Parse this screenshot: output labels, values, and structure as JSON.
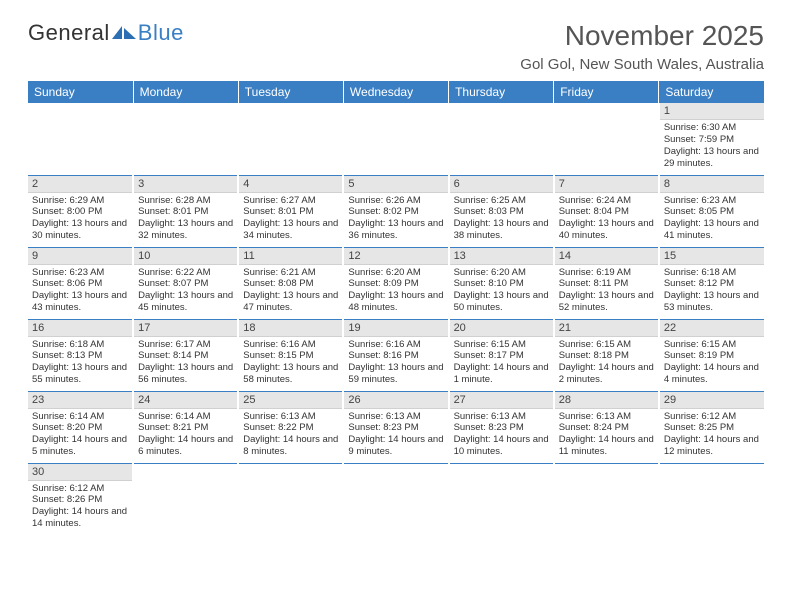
{
  "logo": {
    "general": "General",
    "blue": "Blue"
  },
  "title": "November 2025",
  "location": "Gol Gol, New South Wales, Australia",
  "colors": {
    "header_bg": "#3a7fc4",
    "header_text": "#ffffff",
    "daynum_bg": "#e6e6e6",
    "row_divider": "#3a7fc4",
    "text": "#333333",
    "title_text": "#555555",
    "background": "#ffffff"
  },
  "weekdays": [
    "Sunday",
    "Monday",
    "Tuesday",
    "Wednesday",
    "Thursday",
    "Friday",
    "Saturday"
  ],
  "weeks": [
    [
      null,
      null,
      null,
      null,
      null,
      null,
      {
        "n": "1",
        "sr": "6:30 AM",
        "ss": "7:59 PM",
        "dl": "13 hours and 29 minutes."
      }
    ],
    [
      {
        "n": "2",
        "sr": "6:29 AM",
        "ss": "8:00 PM",
        "dl": "13 hours and 30 minutes."
      },
      {
        "n": "3",
        "sr": "6:28 AM",
        "ss": "8:01 PM",
        "dl": "13 hours and 32 minutes."
      },
      {
        "n": "4",
        "sr": "6:27 AM",
        "ss": "8:01 PM",
        "dl": "13 hours and 34 minutes."
      },
      {
        "n": "5",
        "sr": "6:26 AM",
        "ss": "8:02 PM",
        "dl": "13 hours and 36 minutes."
      },
      {
        "n": "6",
        "sr": "6:25 AM",
        "ss": "8:03 PM",
        "dl": "13 hours and 38 minutes."
      },
      {
        "n": "7",
        "sr": "6:24 AM",
        "ss": "8:04 PM",
        "dl": "13 hours and 40 minutes."
      },
      {
        "n": "8",
        "sr": "6:23 AM",
        "ss": "8:05 PM",
        "dl": "13 hours and 41 minutes."
      }
    ],
    [
      {
        "n": "9",
        "sr": "6:23 AM",
        "ss": "8:06 PM",
        "dl": "13 hours and 43 minutes."
      },
      {
        "n": "10",
        "sr": "6:22 AM",
        "ss": "8:07 PM",
        "dl": "13 hours and 45 minutes."
      },
      {
        "n": "11",
        "sr": "6:21 AM",
        "ss": "8:08 PM",
        "dl": "13 hours and 47 minutes."
      },
      {
        "n": "12",
        "sr": "6:20 AM",
        "ss": "8:09 PM",
        "dl": "13 hours and 48 minutes."
      },
      {
        "n": "13",
        "sr": "6:20 AM",
        "ss": "8:10 PM",
        "dl": "13 hours and 50 minutes."
      },
      {
        "n": "14",
        "sr": "6:19 AM",
        "ss": "8:11 PM",
        "dl": "13 hours and 52 minutes."
      },
      {
        "n": "15",
        "sr": "6:18 AM",
        "ss": "8:12 PM",
        "dl": "13 hours and 53 minutes."
      }
    ],
    [
      {
        "n": "16",
        "sr": "6:18 AM",
        "ss": "8:13 PM",
        "dl": "13 hours and 55 minutes."
      },
      {
        "n": "17",
        "sr": "6:17 AM",
        "ss": "8:14 PM",
        "dl": "13 hours and 56 minutes."
      },
      {
        "n": "18",
        "sr": "6:16 AM",
        "ss": "8:15 PM",
        "dl": "13 hours and 58 minutes."
      },
      {
        "n": "19",
        "sr": "6:16 AM",
        "ss": "8:16 PM",
        "dl": "13 hours and 59 minutes."
      },
      {
        "n": "20",
        "sr": "6:15 AM",
        "ss": "8:17 PM",
        "dl": "14 hours and 1 minute."
      },
      {
        "n": "21",
        "sr": "6:15 AM",
        "ss": "8:18 PM",
        "dl": "14 hours and 2 minutes."
      },
      {
        "n": "22",
        "sr": "6:15 AM",
        "ss": "8:19 PM",
        "dl": "14 hours and 4 minutes."
      }
    ],
    [
      {
        "n": "23",
        "sr": "6:14 AM",
        "ss": "8:20 PM",
        "dl": "14 hours and 5 minutes."
      },
      {
        "n": "24",
        "sr": "6:14 AM",
        "ss": "8:21 PM",
        "dl": "14 hours and 6 minutes."
      },
      {
        "n": "25",
        "sr": "6:13 AM",
        "ss": "8:22 PM",
        "dl": "14 hours and 8 minutes."
      },
      {
        "n": "26",
        "sr": "6:13 AM",
        "ss": "8:23 PM",
        "dl": "14 hours and 9 minutes."
      },
      {
        "n": "27",
        "sr": "6:13 AM",
        "ss": "8:23 PM",
        "dl": "14 hours and 10 minutes."
      },
      {
        "n": "28",
        "sr": "6:13 AM",
        "ss": "8:24 PM",
        "dl": "14 hours and 11 minutes."
      },
      {
        "n": "29",
        "sr": "6:12 AM",
        "ss": "8:25 PM",
        "dl": "14 hours and 12 minutes."
      }
    ],
    [
      {
        "n": "30",
        "sr": "6:12 AM",
        "ss": "8:26 PM",
        "dl": "14 hours and 14 minutes."
      },
      null,
      null,
      null,
      null,
      null,
      null
    ]
  ],
  "labels": {
    "sunrise": "Sunrise:",
    "sunset": "Sunset:",
    "daylight": "Daylight:"
  }
}
